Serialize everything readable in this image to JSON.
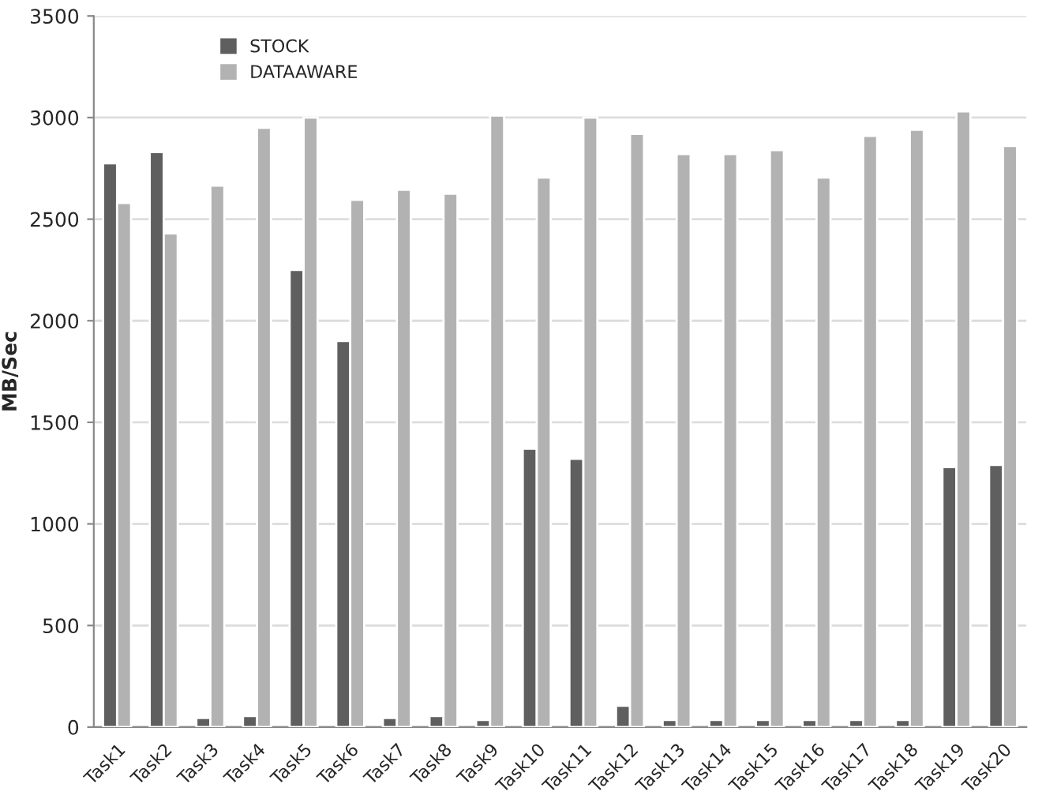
{
  "chart_data": {
    "type": "bar",
    "ylabel": "MB/Sec",
    "categories": [
      "Task1",
      "Task2",
      "Task3",
      "Task4",
      "Task5",
      "Task6",
      "Task7",
      "Task8",
      "Task9",
      "Task10",
      "Task11",
      "Task12",
      "Task13",
      "Task14",
      "Task15",
      "Task16",
      "Task17",
      "Task18",
      "Task19",
      "Task20"
    ],
    "series": [
      {
        "name": "STOCK",
        "color": "#5f5f5f",
        "values": [
          2775,
          2830,
          45,
          55,
          2250,
          1900,
          45,
          55,
          35,
          1370,
          1320,
          105,
          35,
          35,
          35,
          35,
          35,
          35,
          1280,
          1290
        ]
      },
      {
        "name": "DATAAWARE",
        "color": "#b2b2b2",
        "values": [
          2580,
          2430,
          2665,
          2950,
          3000,
          2595,
          2645,
          2625,
          3010,
          2705,
          3000,
          2920,
          2820,
          2820,
          2840,
          2705,
          2910,
          2940,
          3030,
          2860
        ]
      }
    ],
    "ylim": [
      0,
      3500
    ],
    "yticks": [
      0,
      500,
      1000,
      1500,
      2000,
      2500,
      3000,
      3500
    ],
    "grid": "y",
    "legend": "top left"
  }
}
